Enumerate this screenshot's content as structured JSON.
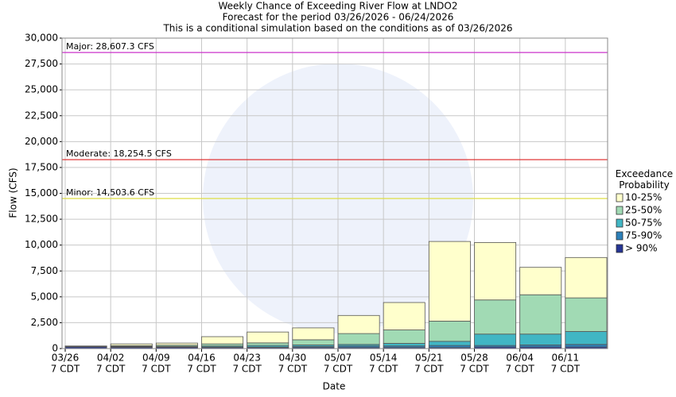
{
  "chart_data": {
    "type": "stacked-bar",
    "title": "Weekly Chance of Exceeding River Flow at LNDO2",
    "subtitle": "Forecast for the period 03/26/2026 - 06/24/2026",
    "note": "This is a conditional simulation based on the conditions as of 03/26/2026",
    "x_label": "Date",
    "y_label": "Flow (CFS)",
    "categories": [
      [
        "03/26",
        "7 CDT"
      ],
      [
        "04/02",
        "7 CDT"
      ],
      [
        "04/09",
        "7 CDT"
      ],
      [
        "04/16",
        "7 CDT"
      ],
      [
        "04/23",
        "7 CDT"
      ],
      [
        "04/30",
        "7 CDT"
      ],
      [
        "05/07",
        "7 CDT"
      ],
      [
        "05/14",
        "7 CDT"
      ],
      [
        "05/21",
        "7 CDT"
      ],
      [
        "05/28",
        "7 CDT"
      ],
      [
        "06/04",
        "7 CDT"
      ],
      [
        "06/11",
        "7 CDT"
      ]
    ],
    "legend_title": "Exceedance Probability",
    "series": [
      {
        "name": "10-25%",
        "color": "#ffffcc",
        "values": [
          20,
          170,
          200,
          700,
          1050,
          1150,
          1750,
          2650,
          7700,
          5550,
          2650,
          3900
        ]
      },
      {
        "name": "25-50%",
        "color": "#a1dab4",
        "values": [
          20,
          80,
          120,
          200,
          250,
          500,
          1050,
          1300,
          1950,
          3300,
          3800,
          3250
        ]
      },
      {
        "name": "50-75%",
        "color": "#41b6c4",
        "values": [
          30,
          40,
          50,
          100,
          150,
          150,
          150,
          250,
          400,
          1100,
          1050,
          1250
        ]
      },
      {
        "name": "75-90%",
        "color": "#2c7fb8",
        "values": [
          30,
          40,
          40,
          50,
          50,
          100,
          150,
          150,
          200,
          150,
          200,
          250
        ]
      },
      {
        "name": "> 90%",
        "color": "#253494",
        "values": [
          150,
          120,
          120,
          100,
          100,
          100,
          100,
          100,
          100,
          150,
          150,
          150
        ]
      }
    ],
    "thresholds": [
      {
        "label": "Major: 28,607.3 CFS",
        "value": 28607.3,
        "color": "#cc33cc"
      },
      {
        "label": "Moderate: 18,254.5 CFS",
        "value": 18254.5,
        "color": "#dd2222"
      },
      {
        "label": "Minor: 14,503.6 CFS",
        "value": 14503.6,
        "color": "#dddd44"
      }
    ],
    "ylim": [
      0,
      30000
    ],
    "yticks": [
      0,
      {
        "value": 2500,
        "label": "2,500"
      },
      {
        "value": 5000,
        "label": "5,000"
      },
      {
        "value": 7500,
        "label": "7,500"
      },
      {
        "value": 10000,
        "label": "10,000"
      },
      {
        "value": 12500,
        "label": "12,500"
      },
      {
        "value": 15000,
        "label": "15,000"
      },
      {
        "value": 17500,
        "label": "17,500"
      },
      {
        "value": 20000,
        "label": "20,000"
      },
      {
        "value": 22500,
        "label": "22,500"
      },
      {
        "value": 25000,
        "label": "25,000"
      },
      {
        "value": 27500,
        "label": "27,500"
      },
      {
        "value": 30000,
        "label": "30,000"
      }
    ],
    "grid": true
  }
}
